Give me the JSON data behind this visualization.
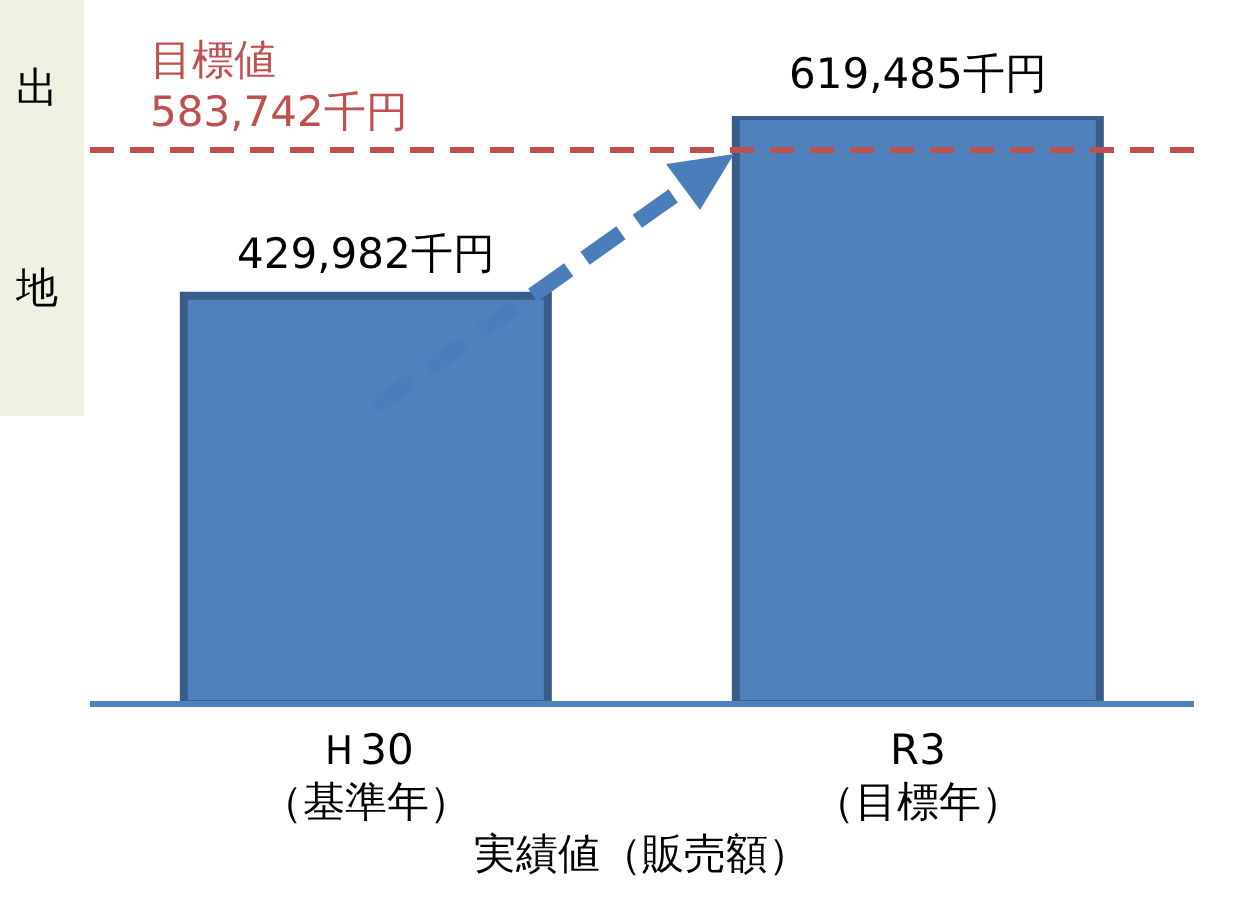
{
  "chart_data": {
    "type": "bar",
    "categories": [
      "Ｈ30\n（基準年）",
      "R3\n（目標年）"
    ],
    "values": [
      429982,
      619485
    ],
    "value_labels": [
      "429,982千円",
      "619,485千円"
    ],
    "color": "#4f81bd",
    "xlabel": "実績値（販売額）",
    "ref_lines": [
      {
        "axis": "y",
        "value": 583742,
        "label": "目標値\n583,742千円",
        "color": "#c0504d",
        "line_style": "dashed"
      }
    ],
    "annotations": [
      "出",
      "地"
    ]
  }
}
